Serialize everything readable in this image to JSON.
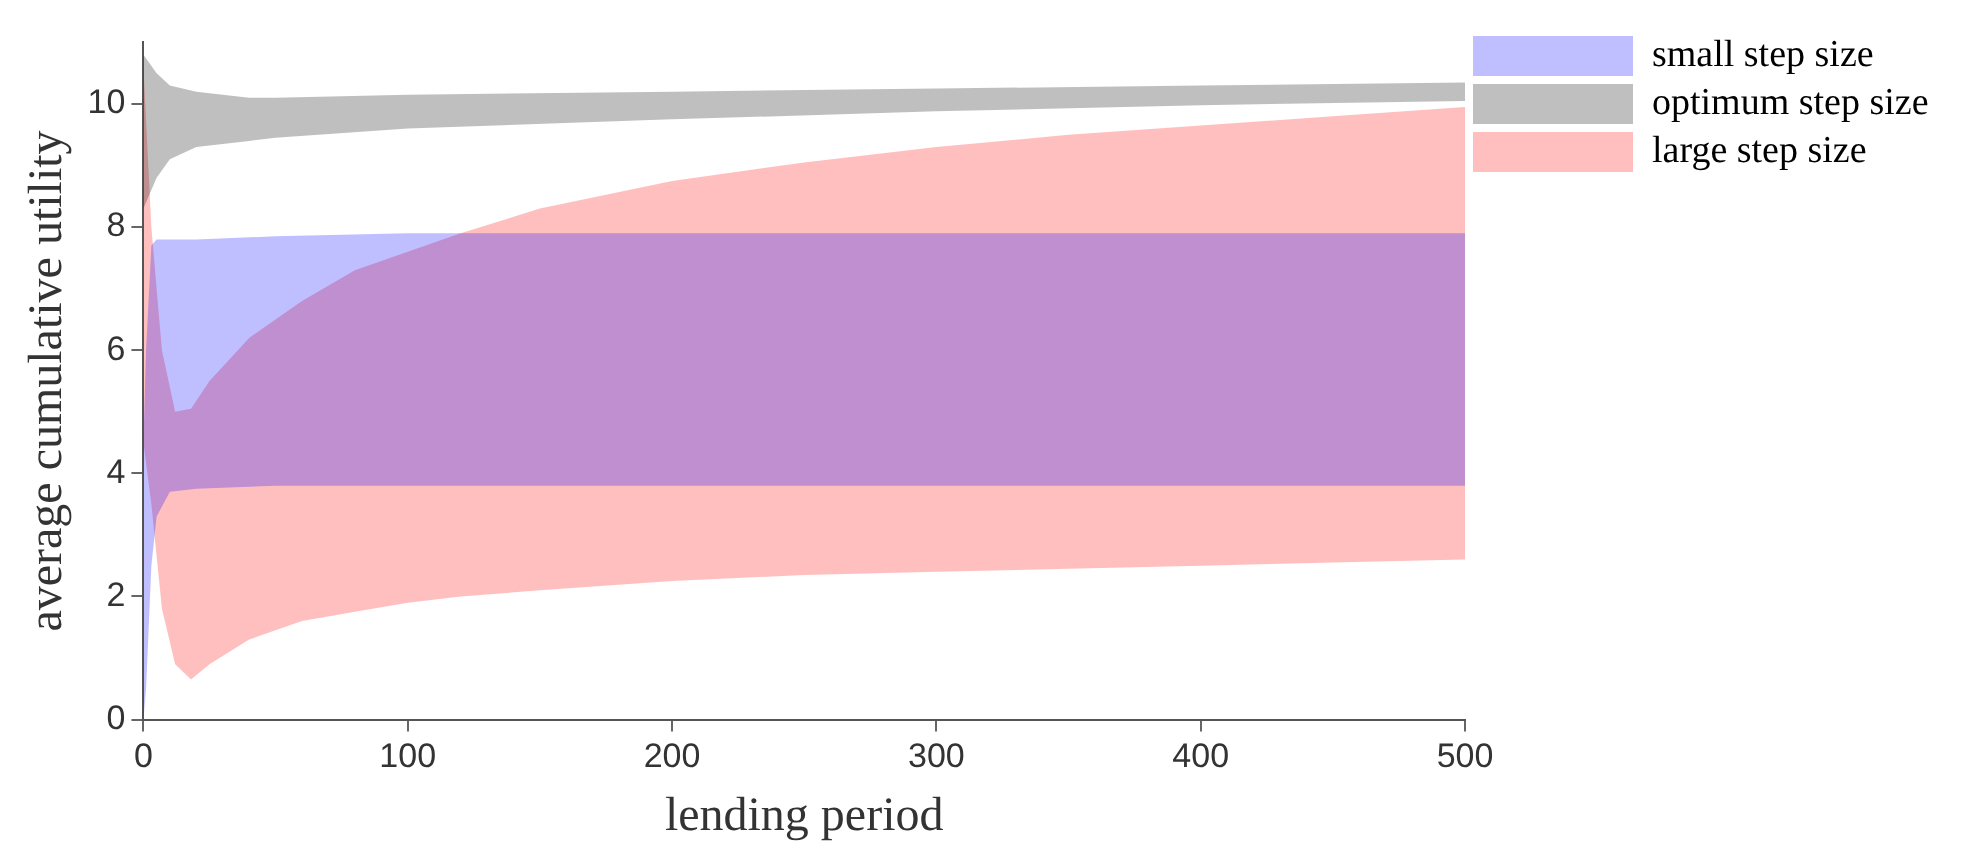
{
  "chart_data": {
    "type": "area",
    "xlabel": "lending period",
    "ylabel": "average cumulative utility",
    "xlim": [
      0,
      500
    ],
    "ylim": [
      0,
      11
    ],
    "xticks": [
      0,
      100,
      200,
      300,
      400,
      500
    ],
    "yticks": [
      0,
      2,
      4,
      6,
      8,
      10
    ],
    "grid": false,
    "legend": "top right",
    "series": [
      {
        "name": "small step size",
        "color": "#0000ff",
        "x": [
          0,
          1,
          3,
          5,
          10,
          20,
          50,
          100,
          200,
          300,
          400,
          500
        ],
        "values": [
          null,
          null,
          null,
          null,
          null,
          null,
          null,
          null,
          null,
          null,
          null,
          null
        ],
        "upper": [
          4.5,
          6,
          7.7,
          7.8,
          7.8,
          7.8,
          7.85,
          7.9,
          7.9,
          7.9,
          7.9,
          7.9
        ],
        "lower": [
          0,
          0.5,
          2.5,
          3.3,
          3.7,
          3.75,
          3.8,
          3.8,
          3.8,
          3.8,
          3.8,
          3.8
        ]
      },
      {
        "name": "optimum step size",
        "color": "#000000",
        "x": [
          0,
          5,
          10,
          20,
          40,
          50,
          100,
          200,
          300,
          400,
          500
        ],
        "values": [
          null,
          null,
          null,
          null,
          null,
          null,
          null,
          null,
          null,
          null,
          null
        ],
        "upper": [
          10.8,
          10.5,
          10.3,
          10.2,
          10.1,
          10.1,
          10.15,
          10.2,
          10.25,
          10.3,
          10.35
        ],
        "lower": [
          8.3,
          8.8,
          9.1,
          9.3,
          9.4,
          9.45,
          9.6,
          9.75,
          9.88,
          9.98,
          10.05
        ]
      },
      {
        "name": "large step size",
        "color": "#ff0000",
        "x": [
          0,
          3,
          7,
          12,
          18,
          25,
          40,
          60,
          80,
          100,
          120,
          150,
          200,
          250,
          300,
          350,
          400,
          450,
          500
        ],
        "values": [
          null,
          null,
          null,
          null,
          null,
          null,
          null,
          null,
          null,
          null,
          null,
          null,
          null,
          null,
          null,
          null,
          null,
          null,
          null
        ],
        "upper": [
          10.6,
          8,
          6,
          5,
          5.05,
          5.5,
          6.2,
          6.8,
          7.3,
          7.6,
          7.9,
          8.3,
          8.75,
          9.05,
          9.3,
          9.5,
          9.65,
          9.8,
          9.95
        ],
        "lower": [
          4.5,
          3.5,
          1.8,
          0.9,
          0.65,
          0.9,
          1.3,
          1.6,
          1.75,
          1.9,
          2,
          2.1,
          2.25,
          2.35,
          2.4,
          2.45,
          2.5,
          2.55,
          2.6
        ]
      }
    ]
  }
}
